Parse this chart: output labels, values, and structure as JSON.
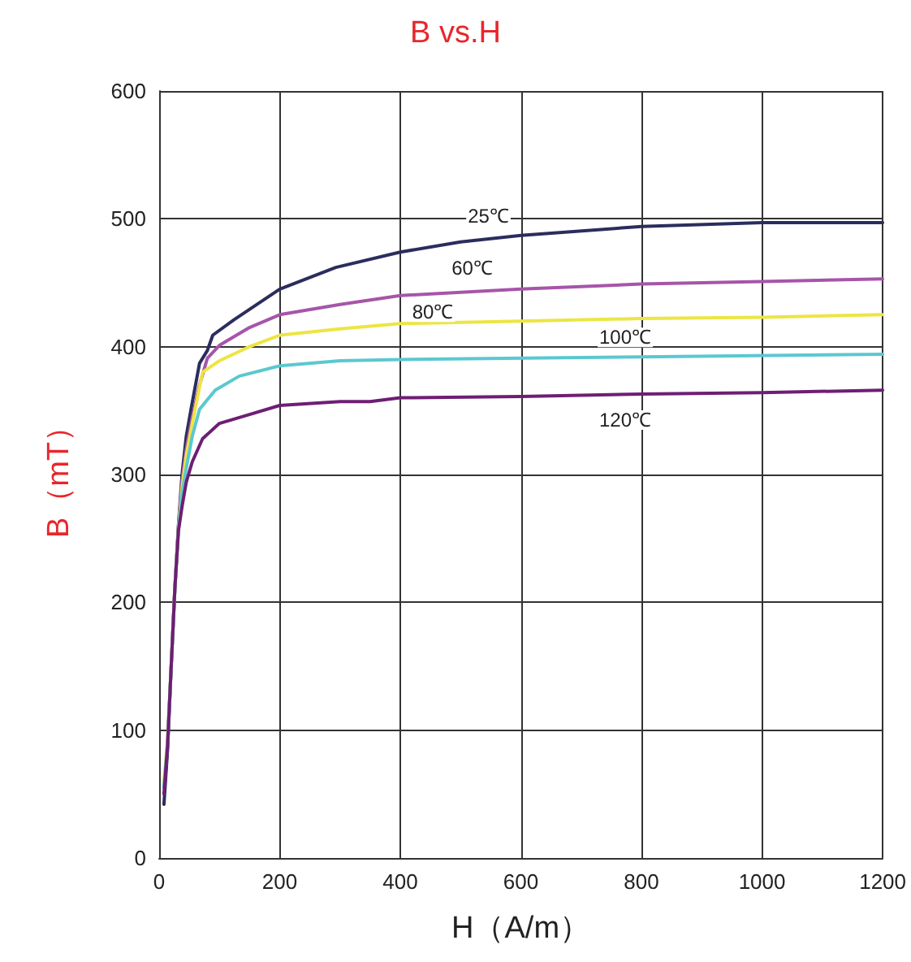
{
  "chart_data": {
    "type": "line",
    "title": "B vs.H",
    "xlabel": "H（A/m）",
    "ylabel": "B（mT）",
    "xlim": [
      0,
      1200
    ],
    "xticks": [
      0,
      200,
      400,
      600,
      800,
      1000,
      1200
    ],
    "ylim": [
      0,
      600
    ],
    "yticks": [
      0,
      100,
      200,
      300,
      400,
      500,
      600
    ],
    "grid": true,
    "legend": false,
    "marker": "none",
    "line_style": "solid",
    "series": [
      {
        "name": "25℃",
        "color": "#2b2d5e",
        "x": [
          8,
          14,
          20,
          26,
          32,
          38,
          45,
          54,
          67,
          80,
          89,
          124,
          200,
          293,
          400,
          500,
          600,
          800,
          1000,
          1200
        ],
        "values": [
          42,
          85,
          150,
          210,
          260,
          300,
          330,
          354,
          387,
          397,
          409,
          421,
          445,
          462,
          474,
          482,
          487,
          494,
          497,
          497
        ]
      },
      {
        "name": "60℃",
        "color": "#a655a9",
        "x": [
          8,
          14,
          20,
          26,
          32,
          38,
          45,
          55,
          67,
          80,
          100,
          150,
          200,
          300,
          400,
          600,
          800,
          1000,
          1200
        ],
        "values": [
          55,
          90,
          150,
          210,
          258,
          295,
          320,
          345,
          370,
          391,
          401,
          415,
          425,
          433,
          440,
          445,
          449,
          451,
          453
        ]
      },
      {
        "name": "80℃",
        "color": "#ece544",
        "x": [
          8,
          14,
          20,
          26,
          32,
          38,
          45,
          55,
          72,
          100,
          150,
          200,
          300,
          400,
          600,
          800,
          1000,
          1200
        ],
        "values": [
          60,
          92,
          150,
          210,
          257,
          290,
          315,
          340,
          380,
          389,
          400,
          409,
          414,
          418,
          420,
          422,
          423,
          425
        ]
      },
      {
        "name": "100℃",
        "color": "#5bc8d0",
        "x": [
          8,
          14,
          20,
          26,
          32,
          38,
          45,
          55,
          67,
          93,
          133,
          200,
          300,
          400,
          800,
          1200
        ],
        "values": [
          55,
          90,
          150,
          210,
          256,
          285,
          305,
          330,
          351,
          366,
          377,
          385,
          389,
          390,
          392,
          394
        ]
      },
      {
        "name": "120℃",
        "color": "#6e1e74",
        "x": [
          8,
          14,
          20,
          26,
          32,
          38,
          45,
          55,
          72,
          100,
          150,
          200,
          300,
          350,
          400,
          600,
          800,
          1000,
          1200
        ],
        "values": [
          50,
          88,
          150,
          210,
          256,
          275,
          294,
          310,
          328,
          340,
          347,
          354,
          357,
          357,
          360,
          361,
          363,
          364,
          366
        ]
      }
    ]
  }
}
